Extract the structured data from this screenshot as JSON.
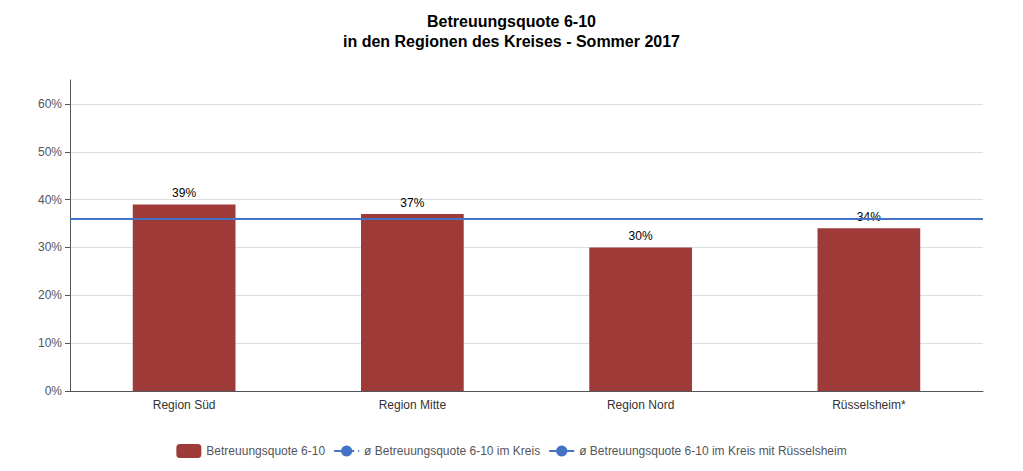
{
  "chart_data": {
    "type": "bar",
    "title": "Betreuungsquote 6-10",
    "subtitle": "in den Regionen des Kreises - Sommer 2017",
    "categories": [
      "Region Süd",
      "Region Mitte",
      "Region Nord",
      "Rüsselsheim*"
    ],
    "series": [
      {
        "name": "Betreuungsquote 6-10",
        "type": "bar",
        "color": "#9E3A38",
        "values": [
          0.39,
          0.37,
          0.3,
          0.34
        ],
        "value_labels": [
          "39%",
          "37%",
          "30%",
          "34%"
        ]
      },
      {
        "name": "ø Betreuungsquote 6-10 im Kreis",
        "type": "line",
        "color": "#4472C4",
        "line_style": "dashed",
        "value": 0.362
      },
      {
        "name": "ø Betreuungsquote 6-10 im Kreis mit Rüsselsheim",
        "type": "line",
        "color": "#4472C4",
        "line_style": "solid",
        "value": 0.356
      }
    ],
    "ylim": [
      0,
      0.65
    ],
    "yticks": [
      {
        "value": 0.0,
        "label": "0%"
      },
      {
        "value": 0.1,
        "label": "10%"
      },
      {
        "value": 0.2,
        "label": "20%"
      },
      {
        "value": 0.3,
        "label": "30%"
      },
      {
        "value": 0.4,
        "label": "40%"
      },
      {
        "value": 0.5,
        "label": "50%"
      },
      {
        "value": 0.6,
        "label": "60%"
      }
    ],
    "grid": true,
    "legend": "bottom",
    "data_labels": true
  }
}
